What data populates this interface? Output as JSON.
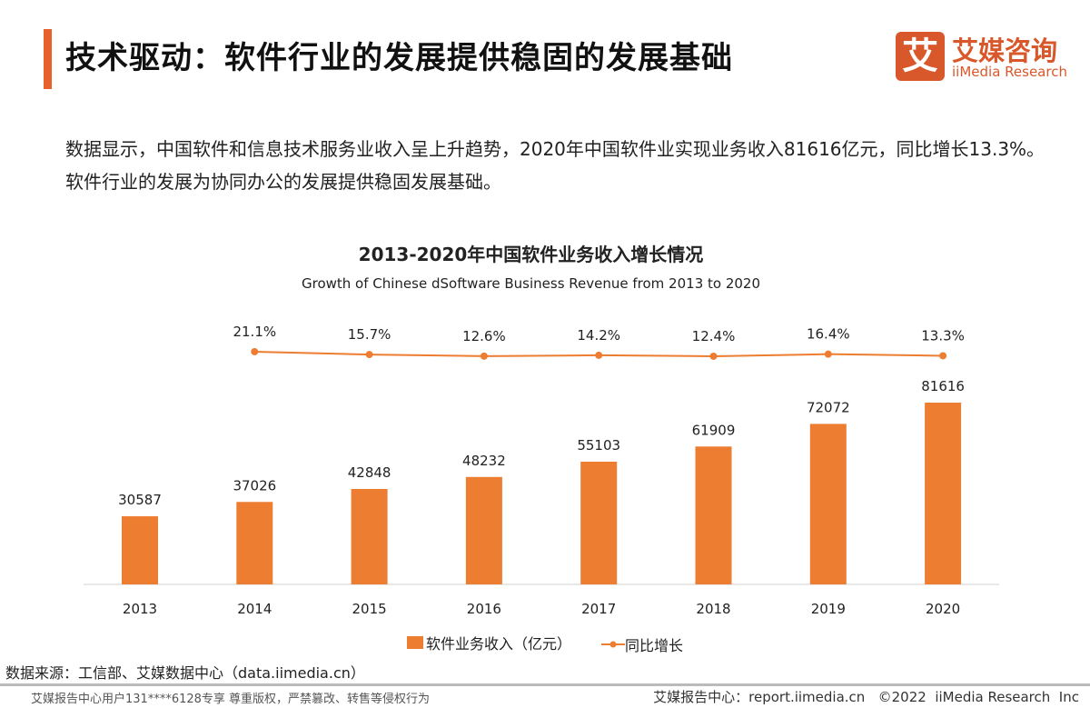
{
  "header": {
    "title": "技术驱动：软件行业的发展提供稳固的发展基础",
    "logo_mark": "艾",
    "logo_cn": "艾媒咨询",
    "logo_en": "iiMedia Research"
  },
  "description": "数据显示，中国软件和信息技术服务业收入呈上升趋势，2020年中国软件业实现业务收入81616亿元，同比增长13.3%。软件行业的发展为协同办公的发展提供稳固发展基础。",
  "colors": {
    "accent": "#e8602c",
    "bar": "#ed7d31",
    "line": "#ed7d31"
  },
  "chart_data": {
    "type": "bar+line",
    "title": "2013-2020年中国软件业务收入增长情况",
    "subtitle": "Growth of Chinese dSoftware Business Revenue from 2013 to 2020",
    "categories": [
      "2013",
      "2014",
      "2015",
      "2016",
      "2017",
      "2018",
      "2019",
      "2020"
    ],
    "series": [
      {
        "name": "软件业务收入（亿元）",
        "type": "bar",
        "values": [
          30587,
          37026,
          42848,
          48232,
          55103,
          61909,
          72072,
          81616
        ]
      },
      {
        "name": "同比增长",
        "type": "line",
        "values": [
          null,
          21.1,
          15.7,
          12.6,
          14.2,
          12.4,
          16.4,
          13.3
        ],
        "labels": [
          "",
          "21.1%",
          "15.7%",
          "12.6%",
          "14.2%",
          "12.4%",
          "16.4%",
          "13.3%"
        ]
      }
    ],
    "legend": "bottom",
    "grid": false
  },
  "source": "数据来源：工信部、艾媒数据中心（data.iimedia.cn）",
  "footer": {
    "left": "艾媒报告中心用户131****6128专享 尊重版权，严禁篡改、转售等侵权行为",
    "right": "艾媒报告中心：report.iimedia.cn   ©2022  iiMedia Research  Inc"
  }
}
